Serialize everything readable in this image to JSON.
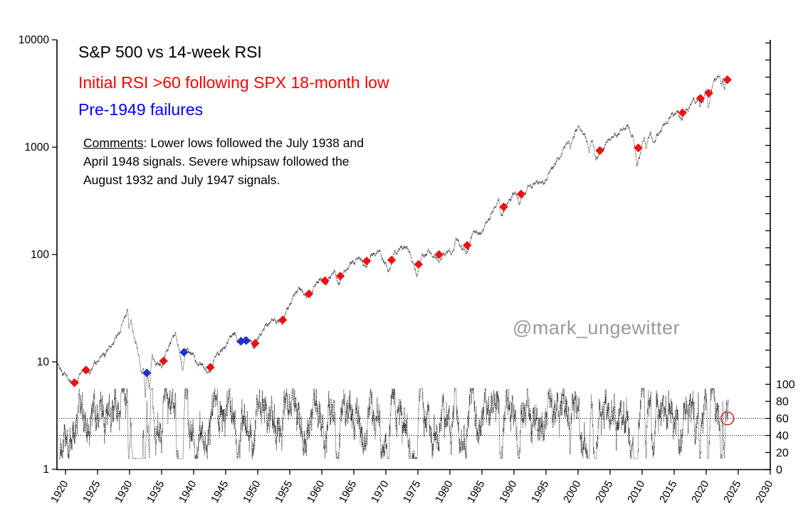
{
  "title": {
    "line1": "S&P 500 vs 14-week RSI",
    "line2": "Initial RSI >60 following SPX 18-month low",
    "line3": "Pre-1949 failures"
  },
  "comments": {
    "label": "Comments",
    "line1_rest": ": Lower lows followed the July 1938 and",
    "line2": "April 1948 signals. Severe whipsaw followed the",
    "line3": "August 1932 and July 1947 signals."
  },
  "watermark": "@mark_ungewitter",
  "colors": {
    "title_accent_red": "#ff0000",
    "title_accent_blue": "#0000ff",
    "red_marker": "#ee1111",
    "blue_marker": "#2233cc",
    "series_line": "#1a1a1a",
    "highlight_circle": "#cc2222",
    "watermark_gray": "#9a9a9a",
    "axis": "#000000"
  },
  "chart_data": {
    "type": "line",
    "title": "S&P 500 vs 14-week RSI",
    "x_axis": {
      "label": "",
      "ticks": [
        1920,
        1925,
        1930,
        1935,
        1940,
        1945,
        1950,
        1955,
        1960,
        1965,
        1970,
        1975,
        1980,
        1985,
        1990,
        1995,
        2000,
        2005,
        2010,
        2015,
        2020,
        2025,
        2030
      ],
      "range": [
        1918.7,
        2030
      ]
    },
    "price_axis": {
      "scale": "log",
      "ylim": [
        1,
        10000
      ],
      "tick_labels": [
        "10000",
        "1000",
        "100",
        "10",
        "1"
      ],
      "tick_values": [
        10000,
        1000,
        100,
        10,
        1
      ],
      "side": "left"
    },
    "rsi_axis": {
      "ylim": [
        0,
        100
      ],
      "tick_labels": [
        "100",
        "80",
        "60",
        "40",
        "20",
        "0"
      ],
      "tick_values": [
        100,
        80,
        60,
        40,
        20,
        0
      ],
      "levels": [
        60,
        40
      ],
      "side": "right"
    },
    "series": [
      {
        "name": "S&P 500 weekly (log scale)",
        "style": "dotted-black"
      },
      {
        "name": "14-week RSI",
        "style": "dotted-black",
        "panel": "lower"
      }
    ],
    "price_keypoints": [
      [
        1918.75,
        9.4
      ],
      [
        1919.4,
        8.2
      ],
      [
        1920.1,
        7.4
      ],
      [
        1921.3,
        6.15
      ],
      [
        1921.9,
        6.9
      ],
      [
        1922.8,
        8.6
      ],
      [
        1923.6,
        7.8
      ],
      [
        1924.6,
        9.6
      ],
      [
        1925.6,
        11.2
      ],
      [
        1926.5,
        12.6
      ],
      [
        1927.6,
        15.6
      ],
      [
        1928.6,
        20
      ],
      [
        1929.68,
        31.3
      ],
      [
        1929.92,
        20.5
      ],
      [
        1930.25,
        24
      ],
      [
        1930.9,
        15.5
      ],
      [
        1931.5,
        11
      ],
      [
        1931.95,
        7.6
      ],
      [
        1932.2,
        8.8
      ],
      [
        1932.45,
        4.45
      ],
      [
        1932.7,
        8.6
      ],
      [
        1933.1,
        5.7
      ],
      [
        1933.55,
        11.6
      ],
      [
        1934.1,
        9.6
      ],
      [
        1935.0,
        9.2
      ],
      [
        1936.2,
        14.5
      ],
      [
        1937.2,
        18.6
      ],
      [
        1938.25,
        8.6
      ],
      [
        1938.85,
        12.9
      ],
      [
        1939.8,
        12.1
      ],
      [
        1940.4,
        9.9
      ],
      [
        1941.6,
        9.1
      ],
      [
        1942.3,
        7.6
      ],
      [
        1943.6,
        11.9
      ],
      [
        1944.6,
        12.9
      ],
      [
        1945.9,
        17.6
      ],
      [
        1946.4,
        19.2
      ],
      [
        1946.85,
        14.8
      ],
      [
        1948.4,
        16.8
      ],
      [
        1949.4,
        13.6
      ],
      [
        1950.6,
        19
      ],
      [
        1951.6,
        22.8
      ],
      [
        1952.6,
        24.8
      ],
      [
        1953.7,
        22.8
      ],
      [
        1954.95,
        34
      ],
      [
        1956.3,
        48.5
      ],
      [
        1957.2,
        44
      ],
      [
        1957.85,
        39
      ],
      [
        1959.6,
        59.5
      ],
      [
        1960.8,
        53.5
      ],
      [
        1961.95,
        72.5
      ],
      [
        1962.5,
        52.5
      ],
      [
        1963.6,
        70
      ],
      [
        1964.8,
        85
      ],
      [
        1966.1,
        93.5
      ],
      [
        1966.8,
        73.5
      ],
      [
        1967.75,
        97.5
      ],
      [
        1968.95,
        108
      ],
      [
        1970.45,
        69.5
      ],
      [
        1971.35,
        104
      ],
      [
        1973.0,
        120
      ],
      [
        1973.8,
        103
      ],
      [
        1974.8,
        63
      ],
      [
        1975.6,
        95
      ],
      [
        1976.75,
        107
      ],
      [
        1978.2,
        87
      ],
      [
        1979.8,
        111
      ],
      [
        1980.25,
        98
      ],
      [
        1980.95,
        140
      ],
      [
        1982.6,
        102
      ],
      [
        1983.8,
        172
      ],
      [
        1984.6,
        150
      ],
      [
        1985.6,
        192
      ],
      [
        1986.75,
        253
      ],
      [
        1987.65,
        336
      ],
      [
        1987.9,
        224
      ],
      [
        1989.75,
        360
      ],
      [
        1990.5,
        368
      ],
      [
        1990.8,
        296
      ],
      [
        1992.1,
        418
      ],
      [
        1993.2,
        455
      ],
      [
        1994.15,
        482
      ],
      [
        1994.55,
        445
      ],
      [
        1995.95,
        645
      ],
      [
        1997.15,
        805
      ],
      [
        1997.75,
        955
      ],
      [
        1998.55,
        1190
      ],
      [
        1998.75,
        960
      ],
      [
        1999.55,
        1420
      ],
      [
        2000.22,
        1525
      ],
      [
        2000.95,
        1320
      ],
      [
        2001.75,
        950
      ],
      [
        2002.2,
        1170
      ],
      [
        2002.78,
        780
      ],
      [
        2003.4,
        880
      ],
      [
        2004.95,
        1210
      ],
      [
        2006.1,
        1310
      ],
      [
        2007.4,
        1540
      ],
      [
        2007.78,
        1560
      ],
      [
        2008.25,
        1330
      ],
      [
        2008.6,
        1280
      ],
      [
        2009.17,
        670
      ],
      [
        2010.32,
        1215
      ],
      [
        2010.6,
        1030
      ],
      [
        2011.35,
        1360
      ],
      [
        2011.8,
        1100
      ],
      [
        2012.95,
        1465
      ],
      [
        2014.7,
        2010
      ],
      [
        2015.4,
        2125
      ],
      [
        2016.12,
        1830
      ],
      [
        2017.95,
        2700
      ],
      [
        2018.1,
        2870
      ],
      [
        2018.32,
        2580
      ],
      [
        2018.78,
        2930
      ],
      [
        2018.99,
        2350
      ],
      [
        2019.92,
        3245
      ],
      [
        2020.13,
        3390
      ],
      [
        2020.26,
        2240
      ],
      [
        2020.99,
        3800
      ],
      [
        2021.92,
        4790
      ],
      [
        2022.42,
        3700
      ],
      [
        2022.62,
        4280
      ],
      [
        2022.8,
        3590
      ],
      [
        2023.2,
        4250
      ],
      [
        2023.45,
        4380
      ]
    ],
    "red_signals": [
      [
        1921.4,
        6.4
      ],
      [
        1923.2,
        8.4
      ],
      [
        1935.3,
        10.2
      ],
      [
        1942.6,
        8.9
      ],
      [
        1949.6,
        14.9
      ],
      [
        1953.9,
        24.6
      ],
      [
        1958.0,
        43
      ],
      [
        1960.5,
        57
      ],
      [
        1962.9,
        63
      ],
      [
        1967.0,
        87
      ],
      [
        1970.9,
        89
      ],
      [
        1975.1,
        81
      ],
      [
        1978.3,
        100
      ],
      [
        1982.7,
        122
      ],
      [
        1988.4,
        278
      ],
      [
        1991.1,
        366
      ],
      [
        2003.4,
        930
      ],
      [
        2009.4,
        985
      ],
      [
        2016.3,
        2090
      ],
      [
        2019.1,
        2850
      ],
      [
        2020.4,
        3180
      ],
      [
        2023.3,
        4250
      ]
    ],
    "blue_failures": [
      [
        1932.7,
        7.9
      ],
      [
        1938.5,
        12.3
      ],
      [
        1947.4,
        15.6
      ],
      [
        1948.2,
        15.8
      ]
    ],
    "rsi_highlight": {
      "year": 2023.3,
      "value": 60
    },
    "render": {
      "weekly_step": 0.019230769,
      "t_start": 1918.75,
      "t_end": 2023.45,
      "noise": [
        [
          0.028,
          0.9,
          1.2
        ],
        [
          0.02,
          2.13,
          0.4
        ],
        [
          0.016,
          4.73,
          2.8
        ],
        [
          0.012,
          11.1,
          1.9
        ],
        [
          0.008,
          25.7,
          0.7
        ],
        [
          0.01,
          1.45,
          2.1
        ]
      ],
      "rsi_stretch": 1.6,
      "rsi_clamp": [
        13,
        95
      ]
    }
  }
}
